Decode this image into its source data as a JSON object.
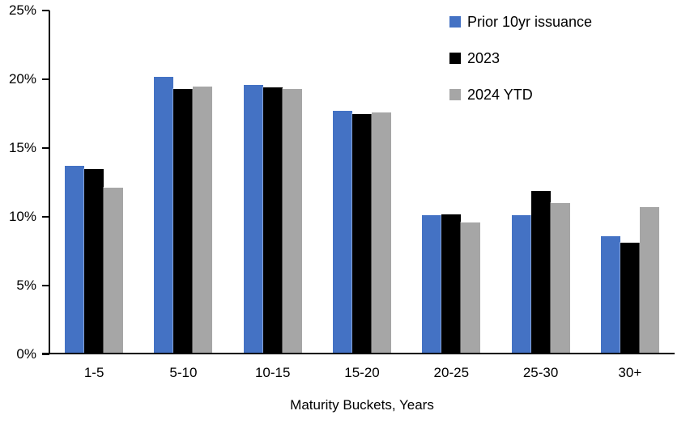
{
  "chart_data": {
    "type": "bar",
    "title": "",
    "xlabel": "Maturity Buckets, Years",
    "ylabel": "",
    "categories": [
      "1-5",
      "5-10",
      "10-15",
      "15-20",
      "20-25",
      "25-30",
      "30+"
    ],
    "series": [
      {
        "name": "Prior 10yr issuance",
        "color": "#4472C4",
        "values": [
          13.7,
          20.2,
          19.6,
          17.7,
          10.1,
          10.1,
          8.6
        ]
      },
      {
        "name": "2023",
        "color": "#000000",
        "values": [
          13.5,
          19.3,
          19.4,
          17.5,
          10.2,
          11.9,
          8.1
        ]
      },
      {
        "name": "2024 YTD",
        "color": "#A6A6A6",
        "values": [
          12.1,
          19.5,
          19.3,
          17.6,
          9.6,
          11.0,
          10.7
        ]
      }
    ],
    "ylim": [
      0,
      25
    ],
    "ytick_step": 5,
    "yticks": [
      "0%",
      "5%",
      "10%",
      "15%",
      "20%",
      "25%"
    ],
    "legend_position": "top-right",
    "grid": false,
    "axis_color": "#000000",
    "background_color": "#ffffff"
  }
}
